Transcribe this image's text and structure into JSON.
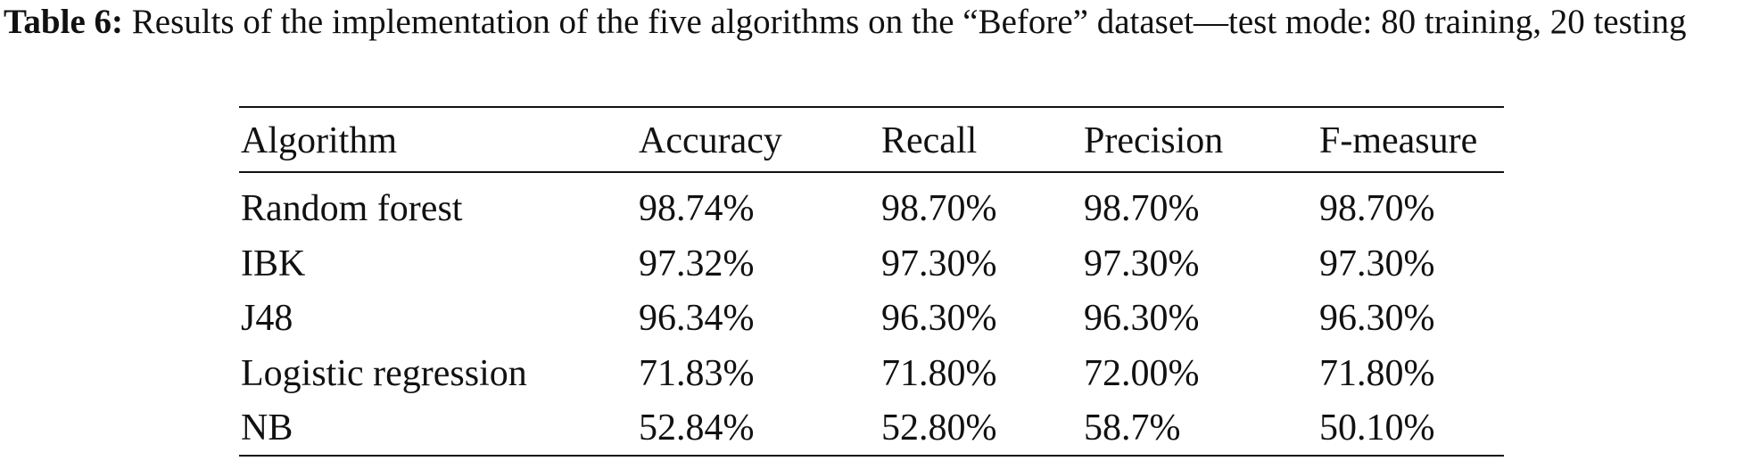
{
  "caption": {
    "label": "Table 6:",
    "text": "Results of the implementation of the five algorithms on the “Before” dataset—test mode: 80 training, 20 testing"
  },
  "table": {
    "header": [
      "Algorithm",
      "Accuracy",
      "Recall",
      "Precision",
      "F-measure"
    ],
    "rows": [
      [
        "Random forest",
        "98.74%",
        "98.70%",
        "98.70%",
        "98.70%"
      ],
      [
        "IBK",
        "97.32%",
        "97.30%",
        "97.30%",
        "97.30%"
      ],
      [
        "J48",
        "96.34%",
        "96.30%",
        "96.30%",
        "96.30%"
      ],
      [
        "Logistic regression",
        "71.83%",
        "71.80%",
        "72.00%",
        "71.80%"
      ],
      [
        "NB",
        "52.84%",
        "52.80%",
        "58.7%",
        "50.10%"
      ]
    ]
  }
}
